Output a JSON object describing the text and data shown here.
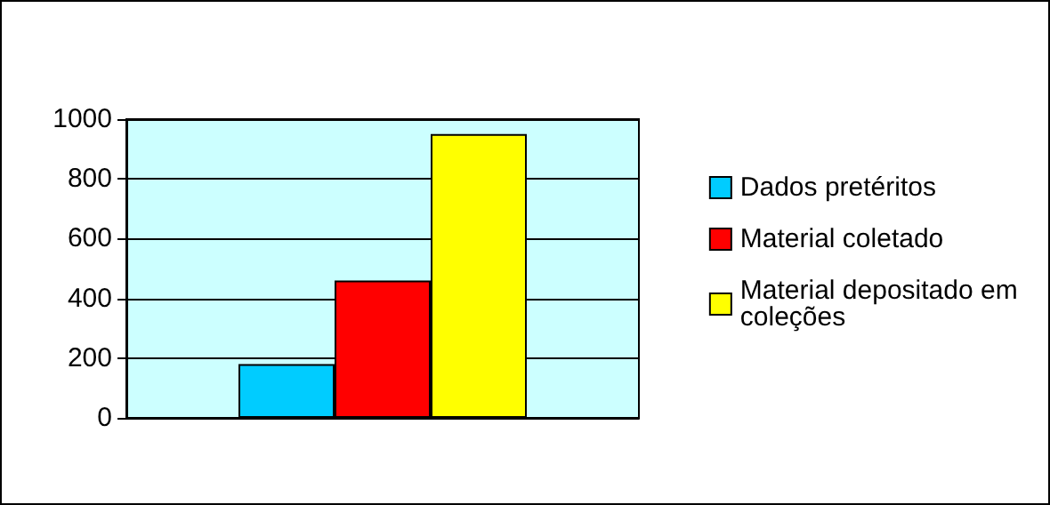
{
  "chart_data": {
    "type": "bar",
    "categories": [
      null
    ],
    "series": [
      {
        "name": "Dados pretéritos",
        "color": "#00ccff",
        "values": [
          180
        ]
      },
      {
        "name": "Material coletado",
        "color": "#ff0000",
        "values": [
          460
        ]
      },
      {
        "name": "Material depositado em coleções",
        "color": "#ffff00",
        "values": [
          950
        ]
      }
    ],
    "ylim": [
      0,
      1000
    ],
    "yticks": [
      0,
      200,
      400,
      600,
      800,
      1000
    ],
    "grid": "y",
    "legend": "right"
  }
}
